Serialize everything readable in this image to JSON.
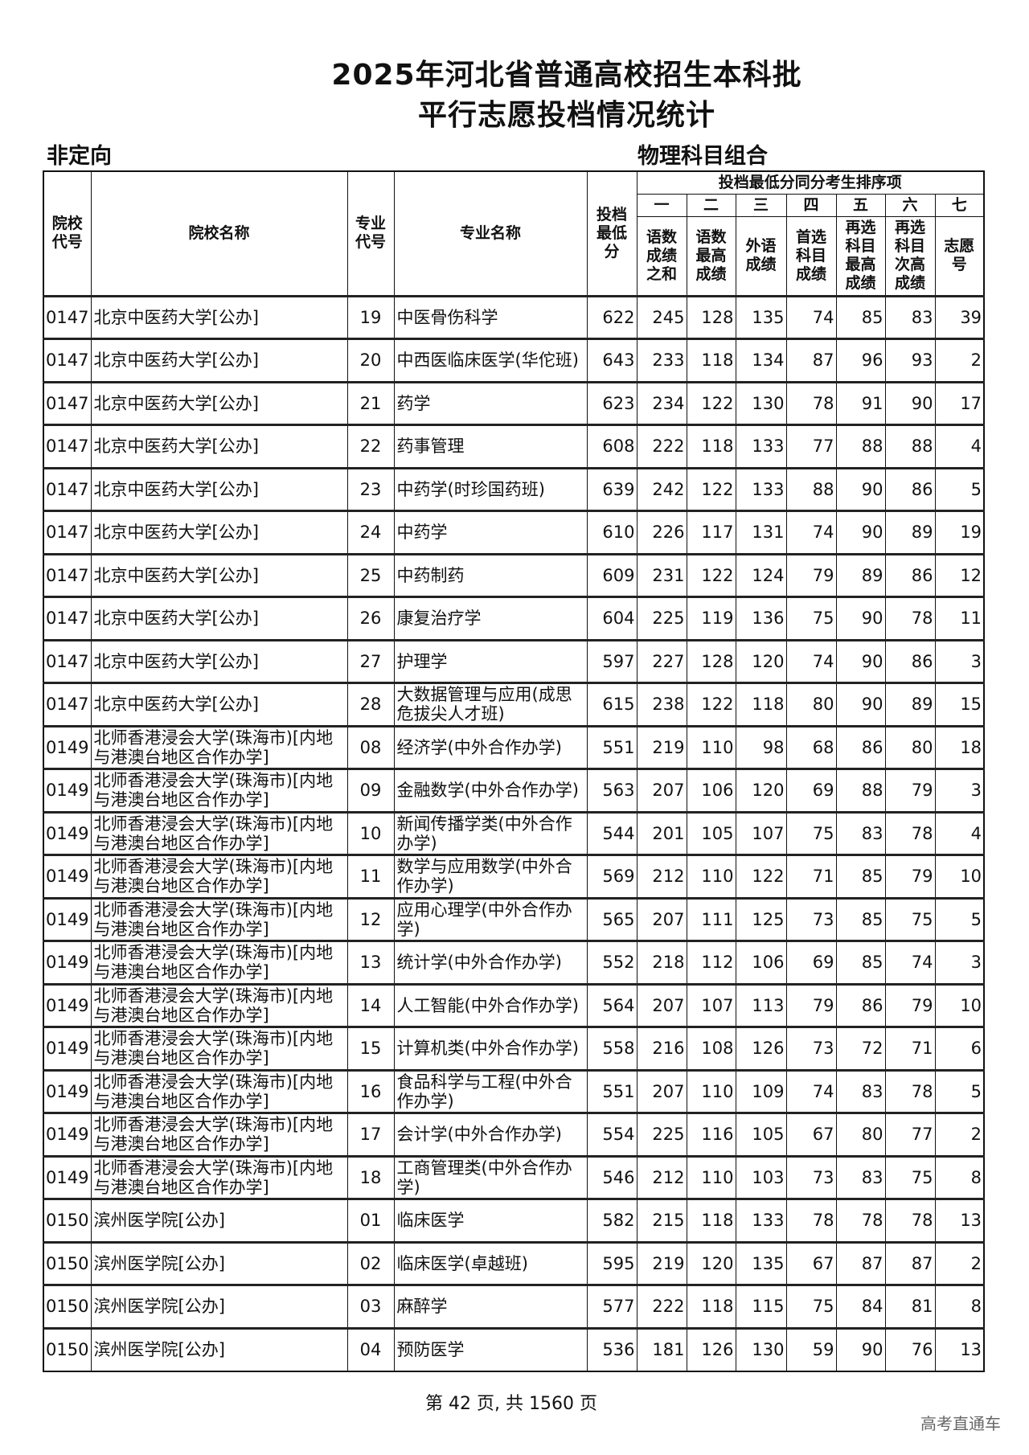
{
  "title": {
    "line1": "2025年河北省普通高校招生本科批",
    "line2": "平行志愿投档情况统计"
  },
  "subtitle_left": "非定向",
  "subtitle_right": "物理科目组合",
  "headers": {
    "school_code": "院校代号",
    "school_name": "院校名称",
    "major_code": "专业代号",
    "major_name": "专业名称",
    "min_score": "投档最低分",
    "tiebreak_group": "投档最低分同分考生排序项",
    "tiebreak_numbers": [
      "一",
      "二",
      "三",
      "四",
      "五",
      "六",
      "七"
    ],
    "tiebreak_items": [
      "语数成绩之和",
      "语数最高成绩",
      "外语成绩",
      "首选科目成绩",
      "再选科目最高成绩",
      "再选科目次高成绩",
      "志愿号"
    ]
  },
  "rows": [
    [
      "0147",
      "北京中医药大学[公办]",
      "19",
      "中医骨伤科学",
      "622",
      "245",
      "128",
      "135",
      "74",
      "85",
      "83",
      "39"
    ],
    [
      "0147",
      "北京中医药大学[公办]",
      "20",
      "中西医临床医学(华佗班)",
      "643",
      "233",
      "118",
      "134",
      "87",
      "96",
      "93",
      "2"
    ],
    [
      "0147",
      "北京中医药大学[公办]",
      "21",
      "药学",
      "623",
      "234",
      "122",
      "130",
      "78",
      "91",
      "90",
      "17"
    ],
    [
      "0147",
      "北京中医药大学[公办]",
      "22",
      "药事管理",
      "608",
      "222",
      "118",
      "133",
      "77",
      "88",
      "88",
      "4"
    ],
    [
      "0147",
      "北京中医药大学[公办]",
      "23",
      "中药学(时珍国药班)",
      "639",
      "242",
      "122",
      "133",
      "88",
      "90",
      "86",
      "5"
    ],
    [
      "0147",
      "北京中医药大学[公办]",
      "24",
      "中药学",
      "610",
      "226",
      "117",
      "131",
      "74",
      "90",
      "89",
      "19"
    ],
    [
      "0147",
      "北京中医药大学[公办]",
      "25",
      "中药制药",
      "609",
      "231",
      "122",
      "124",
      "79",
      "89",
      "86",
      "12"
    ],
    [
      "0147",
      "北京中医药大学[公办]",
      "26",
      "康复治疗学",
      "604",
      "225",
      "119",
      "136",
      "75",
      "90",
      "78",
      "11"
    ],
    [
      "0147",
      "北京中医药大学[公办]",
      "27",
      "护理学",
      "597",
      "227",
      "128",
      "120",
      "74",
      "90",
      "86",
      "3"
    ],
    [
      "0147",
      "北京中医药大学[公办]",
      "28",
      "大数据管理与应用(成思危拔尖人才班)",
      "615",
      "238",
      "122",
      "118",
      "80",
      "90",
      "89",
      "15"
    ],
    [
      "0149",
      "北师香港浸会大学(珠海市)[内地与港澳台地区合作办学]",
      "08",
      "经济学(中外合作办学)",
      "551",
      "219",
      "110",
      "98",
      "68",
      "86",
      "80",
      "18"
    ],
    [
      "0149",
      "北师香港浸会大学(珠海市)[内地与港澳台地区合作办学]",
      "09",
      "金融数学(中外合作办学)",
      "563",
      "207",
      "106",
      "120",
      "69",
      "88",
      "79",
      "3"
    ],
    [
      "0149",
      "北师香港浸会大学(珠海市)[内地与港澳台地区合作办学]",
      "10",
      "新闻传播学类(中外合作办学)",
      "544",
      "201",
      "105",
      "107",
      "75",
      "83",
      "78",
      "4"
    ],
    [
      "0149",
      "北师香港浸会大学(珠海市)[内地与港澳台地区合作办学]",
      "11",
      "数学与应用数学(中外合作办学)",
      "569",
      "212",
      "110",
      "122",
      "71",
      "85",
      "79",
      "10"
    ],
    [
      "0149",
      "北师香港浸会大学(珠海市)[内地与港澳台地区合作办学]",
      "12",
      "应用心理学(中外合作办学)",
      "565",
      "207",
      "111",
      "125",
      "73",
      "85",
      "75",
      "5"
    ],
    [
      "0149",
      "北师香港浸会大学(珠海市)[内地与港澳台地区合作办学]",
      "13",
      "统计学(中外合作办学)",
      "552",
      "218",
      "112",
      "106",
      "69",
      "85",
      "74",
      "3"
    ],
    [
      "0149",
      "北师香港浸会大学(珠海市)[内地与港澳台地区合作办学]",
      "14",
      "人工智能(中外合作办学)",
      "564",
      "207",
      "107",
      "113",
      "79",
      "86",
      "79",
      "10"
    ],
    [
      "0149",
      "北师香港浸会大学(珠海市)[内地与港澳台地区合作办学]",
      "15",
      "计算机类(中外合作办学)",
      "558",
      "216",
      "108",
      "126",
      "73",
      "72",
      "71",
      "6"
    ],
    [
      "0149",
      "北师香港浸会大学(珠海市)[内地与港澳台地区合作办学]",
      "16",
      "食品科学与工程(中外合作办学)",
      "551",
      "207",
      "110",
      "109",
      "74",
      "83",
      "78",
      "5"
    ],
    [
      "0149",
      "北师香港浸会大学(珠海市)[内地与港澳台地区合作办学]",
      "17",
      "会计学(中外合作办学)",
      "554",
      "225",
      "116",
      "105",
      "67",
      "80",
      "77",
      "2"
    ],
    [
      "0149",
      "北师香港浸会大学(珠海市)[内地与港澳台地区合作办学]",
      "18",
      "工商管理类(中外合作办学)",
      "546",
      "212",
      "110",
      "103",
      "73",
      "83",
      "75",
      "8"
    ],
    [
      "0150",
      "滨州医学院[公办]",
      "01",
      "临床医学",
      "582",
      "215",
      "118",
      "133",
      "78",
      "78",
      "78",
      "13"
    ],
    [
      "0150",
      "滨州医学院[公办]",
      "02",
      "临床医学(卓越班)",
      "595",
      "219",
      "120",
      "135",
      "67",
      "87",
      "87",
      "2"
    ],
    [
      "0150",
      "滨州医学院[公办]",
      "03",
      "麻醉学",
      "577",
      "222",
      "118",
      "115",
      "75",
      "84",
      "81",
      "8"
    ],
    [
      "0150",
      "滨州医学院[公办]",
      "04",
      "预防医学",
      "536",
      "181",
      "126",
      "130",
      "59",
      "90",
      "76",
      "13"
    ]
  ],
  "footer": "第 42 页, 共 1560 页",
  "watermark": "高考直通车"
}
